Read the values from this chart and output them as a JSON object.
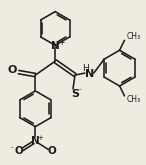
{
  "bg_color": "#f0ebe0",
  "line_color": "#1c1c1c",
  "line_width": 1.15,
  "figsize": [
    1.46,
    1.65
  ],
  "dpi": 100,
  "xlim": [
    0,
    146
  ],
  "ylim": [
    165,
    0
  ]
}
